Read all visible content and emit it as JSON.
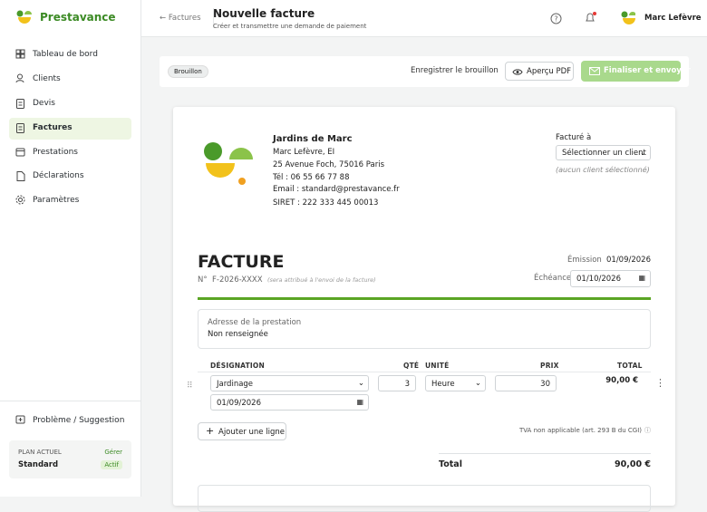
{
  "sidebar": {
    "brand": "Prestavance",
    "nav": [
      "Tableau de bord",
      "Clients",
      "Devis",
      "Factures",
      "Prestations",
      "Déclarations",
      "Paramètres"
    ],
    "feedback": "Problème / Suggestion",
    "plan": {
      "label": "PLAN ACTUEL",
      "manage": "Gérer",
      "name": "Standard",
      "status": "Actif"
    }
  },
  "header": {
    "back": "Factures",
    "title": "Nouvelle facture",
    "subtitle": "Créer et transmettre une demande de paiement",
    "user": "Marc Lefèvre"
  },
  "toolbar": {
    "status": "Brouillon",
    "save": "Enregistrer le brouillon",
    "preview": "Aperçu PDF",
    "finalize": "Finaliser et envoyer"
  },
  "invoice": {
    "company": {
      "name": "Jardins de Marc",
      "owner": "Marc Lefèvre, EI",
      "address": "25 Avenue Foch, 75016 Paris",
      "phone": "Tél : 06 55 66 77 88",
      "email": "Email : standard@prestavance.fr",
      "siret": "SIRET : 222 333 445 00013"
    },
    "billed_to": {
      "label": "Facturé à",
      "select": "Sélectionner un client",
      "note": "(aucun client sélectionné)"
    },
    "title": "FACTURE",
    "number_label": "N°",
    "number": "F-2026-XXXX",
    "number_note": "(sera attribué à l'envoi de la facture)",
    "issue_label": "Émission",
    "issue_date": "01/09/2026",
    "due_label": "Échéance",
    "due_date": "01/10/2026",
    "service_address": {
      "label": "Adresse de la prestation",
      "value": "Non renseignée"
    },
    "table": {
      "headers": [
        "DÉSIGNATION",
        "QTÉ",
        "UNITÉ",
        "PRIX",
        "TOTAL"
      ],
      "rows": [
        {
          "designation": "Jardinage",
          "date": "01/09/2026",
          "qty": 3,
          "unit": "Heure",
          "price": 30,
          "total": "90,00 €"
        }
      ]
    },
    "add_line": "Ajouter une ligne",
    "vat_note": "TVA non applicable (art. 293 B du CGI)",
    "total_label": "Total",
    "total": "90,00 €"
  }
}
